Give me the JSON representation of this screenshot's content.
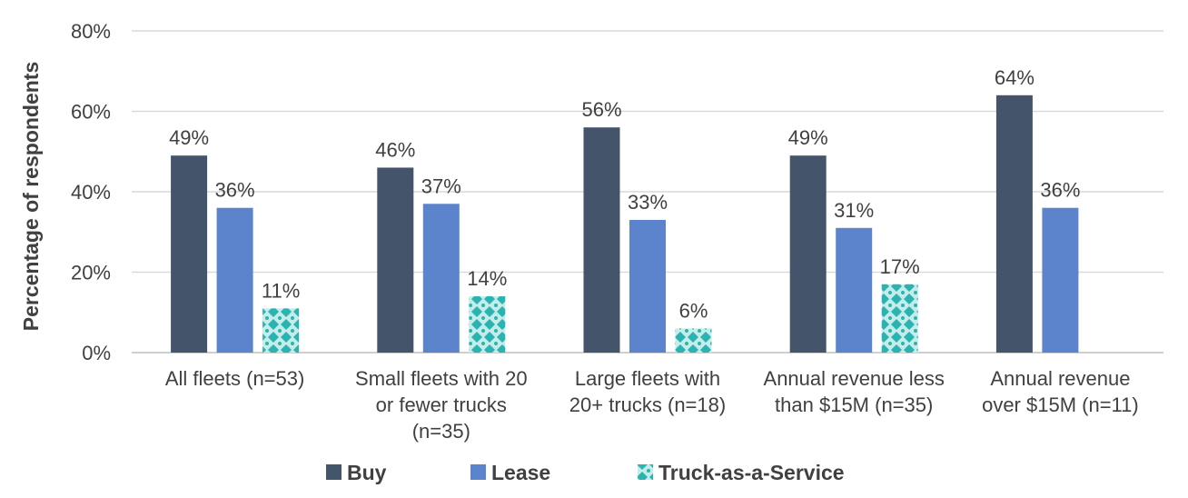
{
  "chart_data": {
    "type": "bar",
    "ylabel": "Percentage of respondents",
    "ylim": [
      0,
      80
    ],
    "yticks": [
      0,
      20,
      40,
      60,
      80
    ],
    "ytick_labels": [
      "0%",
      "20%",
      "40%",
      "60%",
      "80%"
    ],
    "grid": true,
    "legend_position": "bottom",
    "categories": [
      [
        "All fleets (n=53)"
      ],
      [
        "Small fleets with 20",
        "or fewer trucks",
        "(n=35)"
      ],
      [
        "Large fleets with",
        "20+ trucks (n=18)"
      ],
      [
        "Annual revenue less",
        "than $15M (n=35)"
      ],
      [
        "Annual revenue",
        "over $15M (n=11)"
      ]
    ],
    "series": [
      {
        "name": "Buy",
        "color": "#44546a",
        "pattern": "solid",
        "values": [
          49,
          46,
          56,
          49,
          64
        ],
        "labels": [
          "49%",
          "46%",
          "56%",
          "49%",
          "64%"
        ]
      },
      {
        "name": "Lease",
        "color": "#5b84cc",
        "pattern": "solid",
        "values": [
          36,
          37,
          33,
          31,
          36
        ],
        "labels": [
          "36%",
          "37%",
          "33%",
          "31%",
          "36%"
        ]
      },
      {
        "name": "Truck-as-a-Service",
        "color": "#2ab3b0",
        "pattern": "diamond-dots",
        "values": [
          11,
          14,
          6,
          17,
          null
        ],
        "labels": [
          "11%",
          "14%",
          "6%",
          "17%",
          null
        ]
      }
    ]
  }
}
